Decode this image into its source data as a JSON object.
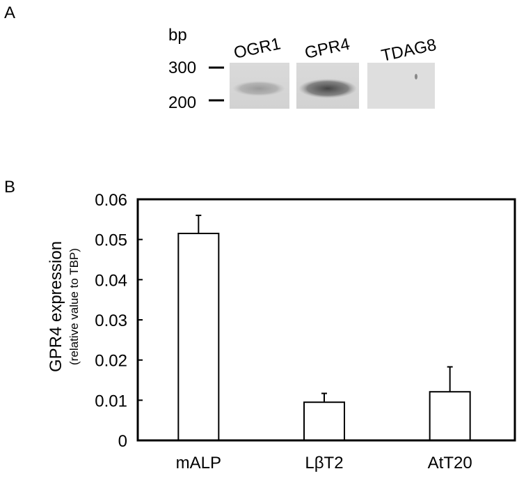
{
  "panel_a": {
    "label": "A",
    "unit_label": "bp",
    "markers": [
      "300",
      "200"
    ],
    "lanes": [
      {
        "name": "OGR1",
        "band_intensity": 0.35
      },
      {
        "name": "GPR4",
        "band_intensity": 0.85
      },
      {
        "name": "TDAG8",
        "band_intensity": 0.0
      }
    ]
  },
  "panel_b": {
    "label": "B"
  },
  "chart_data": {
    "type": "bar",
    "categories": [
      "mALP",
      "LβT2",
      "AtT20"
    ],
    "values": [
      0.0515,
      0.0095,
      0.0121
    ],
    "error_bars": [
      0.0045,
      0.0022,
      0.0062
    ],
    "ylabel": "GPR4 expression",
    "ylabel_sub": "(relative value to TBP)",
    "xlabel": "",
    "ylim": [
      0,
      0.06
    ],
    "yticks": [
      "0",
      "0.01",
      "0.02",
      "0.03",
      "0.04",
      "0.05",
      "0.06"
    ],
    "grid": false,
    "bar_fill": "#ffffff",
    "bar_stroke": "#000000"
  }
}
